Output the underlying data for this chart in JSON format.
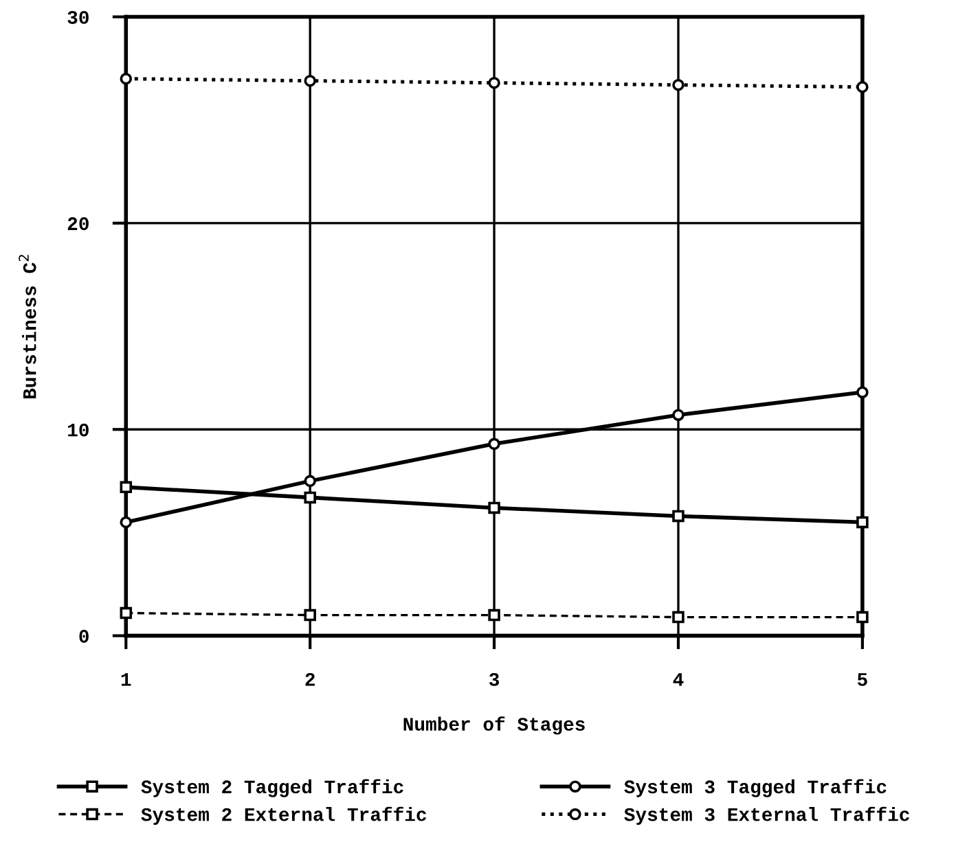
{
  "chart_data": {
    "type": "line",
    "xlabel": "Number of Stages",
    "ylabel": "Burstiness C$^{2}$",
    "x": [
      1,
      2,
      3,
      4,
      5
    ],
    "xlim": [
      1,
      5
    ],
    "xticks": [
      1,
      2,
      3,
      4,
      5
    ],
    "ylim": [
      0,
      30
    ],
    "yticks": [
      0,
      10,
      20,
      30
    ],
    "grid": true,
    "legend": "bottom",
    "series": [
      {
        "name": "System 2 Tagged Traffic",
        "color": "#000000",
        "marker": "square",
        "line_style": "solid",
        "values": [
          7.2,
          6.7,
          6.2,
          5.8,
          5.5
        ]
      },
      {
        "name": "System 3 Tagged Traffic",
        "color": "#000000",
        "marker": "circle",
        "line_style": "solid",
        "values": [
          5.5,
          7.5,
          9.3,
          10.7,
          11.8
        ]
      },
      {
        "name": "System 2 External Traffic",
        "color": "#000000",
        "marker": "square",
        "line_style": "dashed",
        "values": [
          1.1,
          1.0,
          1.0,
          0.9,
          0.9
        ]
      },
      {
        "name": "System 3 External Traffic",
        "color": "#000000",
        "marker": "circle",
        "line_style": "dotted",
        "values": [
          27,
          26.9,
          26.8,
          26.7,
          26.6
        ]
      }
    ]
  }
}
